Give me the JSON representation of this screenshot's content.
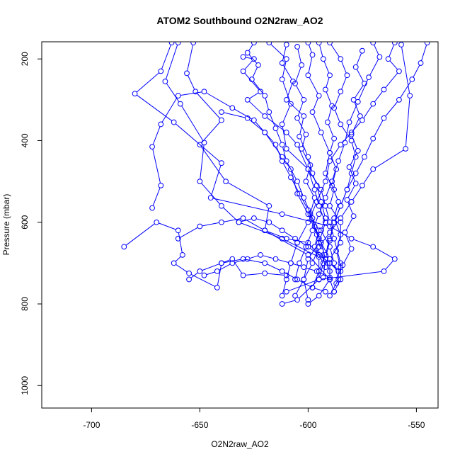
{
  "chart_data": {
    "type": "line",
    "title": "ATOM2 Southbound O2N2raw_AO2",
    "xlabel": "O2N2raw_AO2",
    "ylabel": "Pressure (mbar)",
    "xlim": [
      -723,
      -540
    ],
    "ylim": [
      1055,
      158
    ],
    "y_reversed": true,
    "x_ticks": [
      -700,
      -650,
      -600,
      -550
    ],
    "y_ticks": [
      200,
      400,
      600,
      800,
      1000
    ],
    "grid": false,
    "marker": "open-circle",
    "series_color": "#0000ff",
    "series": [
      {
        "values": [
          [
            -663,
            160
          ],
          [
            -668,
            230
          ],
          [
            -680,
            285
          ],
          [
            -662,
            355
          ],
          [
            -640,
            455
          ],
          [
            -645,
            540
          ],
          [
            -612,
            580
          ],
          [
            -590,
            610
          ],
          [
            -580,
            640
          ],
          [
            -570,
            660
          ],
          [
            -560,
            690
          ],
          [
            -565,
            720
          ],
          [
            -595,
            740
          ],
          [
            -610,
            770
          ]
        ]
      },
      {
        "values": [
          [
            -660,
            160
          ],
          [
            -666,
            255
          ],
          [
            -659,
            310
          ],
          [
            -648,
            405
          ],
          [
            -650,
            500
          ],
          [
            -640,
            560
          ],
          [
            -632,
            600
          ],
          [
            -612,
            640
          ],
          [
            -595,
            685
          ],
          [
            -595,
            740
          ],
          [
            -605,
            790
          ],
          [
            -612,
            800
          ]
        ]
      },
      {
        "values": [
          [
            -653,
            160
          ],
          [
            -656,
            235
          ],
          [
            -652,
            280
          ],
          [
            -640,
            350
          ],
          [
            -650,
            410
          ],
          [
            -638,
            500
          ],
          [
            -618,
            560
          ],
          [
            -620,
            620
          ],
          [
            -600,
            680
          ],
          [
            -590,
            740
          ],
          [
            -595,
            780
          ],
          [
            -600,
            800
          ]
        ]
      },
      {
        "values": [
          [
            -685,
            660
          ],
          [
            -670,
            600
          ],
          [
            -660,
            620
          ],
          [
            -658,
            680
          ],
          [
            -662,
            700
          ],
          [
            -655,
            725
          ],
          [
            -642,
            760
          ],
          [
            -640,
            700
          ],
          [
            -635,
            690
          ],
          [
            -630,
            730
          ],
          [
            -620,
            725
          ],
          [
            -610,
            730
          ]
        ]
      },
      {
        "values": [
          [
            -672,
            565
          ],
          [
            -668,
            510
          ],
          [
            -672,
            415
          ],
          [
            -668,
            360
          ],
          [
            -660,
            290
          ],
          [
            -648,
            280
          ],
          [
            -635,
            320
          ],
          [
            -625,
            350
          ],
          [
            -620,
            380
          ],
          [
            -612,
            440
          ],
          [
            -608,
            470
          ],
          [
            -605,
            530
          ],
          [
            -600,
            580
          ],
          [
            -595,
            640
          ],
          [
            -590,
            690
          ],
          [
            -590,
            740
          ]
        ]
      },
      {
        "values": [
          [
            -630,
            195
          ],
          [
            -625,
            200
          ],
          [
            -630,
            230
          ],
          [
            -622,
            280
          ],
          [
            -628,
            300
          ],
          [
            -620,
            340
          ],
          [
            -610,
            380
          ],
          [
            -605,
            410
          ],
          [
            -600,
            470
          ],
          [
            -594,
            520
          ],
          [
            -592,
            560
          ],
          [
            -590,
            600
          ],
          [
            -588,
            640
          ],
          [
            -585,
            700
          ],
          [
            -585,
            740
          ],
          [
            -588,
            770
          ]
        ]
      },
      {
        "values": [
          [
            -618,
            160
          ],
          [
            -610,
            200
          ],
          [
            -612,
            250
          ],
          [
            -608,
            310
          ],
          [
            -612,
            360
          ],
          [
            -610,
            420
          ],
          [
            -600,
            470
          ],
          [
            -597,
            520
          ],
          [
            -595,
            560
          ],
          [
            -592,
            600
          ],
          [
            -595,
            650
          ],
          [
            -600,
            690
          ],
          [
            -602,
            740
          ],
          [
            -600,
            790
          ]
        ]
      },
      {
        "values": [
          [
            -600,
            160
          ],
          [
            -598,
            190
          ],
          [
            -600,
            240
          ],
          [
            -595,
            290
          ],
          [
            -598,
            330
          ],
          [
            -594,
            380
          ],
          [
            -590,
            430
          ],
          [
            -592,
            480
          ],
          [
            -588,
            520
          ],
          [
            -590,
            560
          ],
          [
            -585,
            600
          ],
          [
            -585,
            650
          ],
          [
            -590,
            690
          ],
          [
            -590,
            740
          ],
          [
            -588,
            770
          ]
        ]
      },
      {
        "values": [
          [
            -590,
            160
          ],
          [
            -585,
            200
          ],
          [
            -582,
            240
          ],
          [
            -585,
            280
          ],
          [
            -588,
            320
          ],
          [
            -585,
            360
          ],
          [
            -580,
            400
          ],
          [
            -578,
            440
          ],
          [
            -580,
            480
          ],
          [
            -582,
            520
          ],
          [
            -585,
            560
          ],
          [
            -588,
            600
          ],
          [
            -590,
            640
          ],
          [
            -592,
            680
          ],
          [
            -595,
            720
          ],
          [
            -598,
            760
          ]
        ]
      },
      {
        "values": [
          [
            -560,
            160
          ],
          [
            -563,
            200
          ],
          [
            -558,
            230
          ],
          [
            -565,
            275
          ],
          [
            -570,
            310
          ],
          [
            -575,
            350
          ],
          [
            -580,
            380
          ],
          [
            -585,
            410
          ],
          [
            -590,
            450
          ],
          [
            -592,
            500
          ],
          [
            -596,
            550
          ],
          [
            -600,
            600
          ],
          [
            -605,
            650
          ],
          [
            -608,
            700
          ],
          [
            -610,
            740
          ],
          [
            -612,
            780
          ]
        ]
      },
      {
        "values": [
          [
            -557,
            165
          ],
          [
            -553,
            290
          ],
          [
            -555,
            420
          ],
          [
            -570,
            470
          ],
          [
            -575,
            510
          ],
          [
            -580,
            550
          ],
          [
            -585,
            590
          ],
          [
            -590,
            625
          ],
          [
            -595,
            660
          ],
          [
            -598,
            700
          ],
          [
            -602,
            740
          ],
          [
            -606,
            780
          ]
        ]
      },
      {
        "values": [
          [
            -570,
            160
          ],
          [
            -567,
            195
          ],
          [
            -572,
            245
          ],
          [
            -577,
            305
          ],
          [
            -581,
            355
          ],
          [
            -583,
            405
          ],
          [
            -586,
            450
          ],
          [
            -589,
            500
          ],
          [
            -592,
            540
          ],
          [
            -595,
            580
          ],
          [
            -598,
            620
          ],
          [
            -601,
            660
          ],
          [
            -604,
            700
          ],
          [
            -606,
            740
          ]
        ]
      },
      {
        "values": [
          [
            -610,
            165
          ],
          [
            -612,
            210
          ],
          [
            -607,
            255
          ],
          [
            -610,
            300
          ],
          [
            -602,
            340
          ],
          [
            -604,
            390
          ],
          [
            -600,
            440
          ],
          [
            -598,
            480
          ],
          [
            -596,
            510
          ],
          [
            -594,
            550
          ],
          [
            -592,
            590
          ],
          [
            -594,
            620
          ],
          [
            -590,
            660
          ],
          [
            -588,
            700
          ],
          [
            -586,
            740
          ],
          [
            -590,
            780
          ]
        ]
      },
      {
        "values": [
          [
            -660,
            640
          ],
          [
            -650,
            610
          ],
          [
            -640,
            600
          ],
          [
            -630,
            590
          ],
          [
            -620,
            620
          ],
          [
            -610,
            640
          ],
          [
            -600,
            650
          ],
          [
            -595,
            680
          ],
          [
            -590,
            700
          ],
          [
            -585,
            720
          ]
        ]
      },
      {
        "values": [
          [
            -655,
            740
          ],
          [
            -650,
            720
          ],
          [
            -640,
            700
          ],
          [
            -630,
            690
          ],
          [
            -620,
            700
          ],
          [
            -612,
            720
          ],
          [
            -605,
            740
          ],
          [
            -598,
            760
          ],
          [
            -592,
            770
          ]
        ]
      },
      {
        "values": [
          [
            -640,
            330
          ],
          [
            -628,
            345
          ],
          [
            -620,
            380
          ],
          [
            -615,
            410
          ],
          [
            -612,
            450
          ],
          [
            -608,
            490
          ],
          [
            -604,
            530
          ],
          [
            -600,
            570
          ],
          [
            -597,
            610
          ],
          [
            -594,
            650
          ],
          [
            -592,
            690
          ],
          [
            -590,
            720
          ]
        ]
      },
      {
        "values": [
          [
            -625,
            160
          ],
          [
            -628,
            185
          ],
          [
            -623,
            215
          ],
          [
            -626,
            250
          ],
          [
            -620,
            290
          ],
          [
            -618,
            330
          ],
          [
            -615,
            370
          ],
          [
            -612,
            410
          ],
          [
            -610,
            450
          ],
          [
            -605,
            500
          ],
          [
            -602,
            540
          ],
          [
            -598,
            590
          ],
          [
            -596,
            630
          ],
          [
            -594,
            670
          ],
          [
            -592,
            710
          ]
        ]
      },
      {
        "values": [
          [
            -545,
            160
          ],
          [
            -548,
            210
          ],
          [
            -552,
            250
          ],
          [
            -558,
            300
          ],
          [
            -565,
            345
          ],
          [
            -570,
            395
          ],
          [
            -574,
            440
          ],
          [
            -578,
            480
          ],
          [
            -582,
            520
          ],
          [
            -585,
            560
          ],
          [
            -588,
            600
          ],
          [
            -590,
            645
          ],
          [
            -592,
            690
          ],
          [
            -593,
            735
          ]
        ]
      },
      {
        "values": [
          [
            -595,
            160
          ],
          [
            -593,
            200
          ],
          [
            -590,
            240
          ],
          [
            -592,
            275
          ],
          [
            -589,
            315
          ],
          [
            -591,
            355
          ],
          [
            -588,
            395
          ],
          [
            -590,
            430
          ],
          [
            -587,
            470
          ],
          [
            -589,
            510
          ],
          [
            -586,
            550
          ],
          [
            -588,
            590
          ],
          [
            -585,
            630
          ],
          [
            -587,
            670
          ],
          [
            -585,
            710
          ],
          [
            -587,
            750
          ]
        ]
      },
      {
        "values": [
          [
            -605,
            170
          ],
          [
            -603,
            215
          ],
          [
            -606,
            260
          ],
          [
            -602,
            300
          ],
          [
            -605,
            345
          ],
          [
            -601,
            385
          ],
          [
            -603,
            420
          ],
          [
            -599,
            460
          ],
          [
            -601,
            500
          ],
          [
            -597,
            540
          ],
          [
            -599,
            580
          ],
          [
            -595,
            620
          ],
          [
            -597,
            660
          ],
          [
            -593,
            700
          ],
          [
            -595,
            740
          ]
        ]
      },
      {
        "values": [
          [
            -575,
            180
          ],
          [
            -578,
            220
          ],
          [
            -574,
            260
          ],
          [
            -579,
            300
          ],
          [
            -576,
            340
          ],
          [
            -580,
            385
          ],
          [
            -577,
            425
          ],
          [
            -581,
            465
          ],
          [
            -578,
            505
          ],
          [
            -582,
            545
          ],
          [
            -579,
            585
          ],
          [
            -583,
            625
          ],
          [
            -580,
            665
          ],
          [
            -584,
            705
          ]
        ]
      },
      {
        "values": [
          [
            -648,
            730
          ],
          [
            -642,
            720
          ],
          [
            -635,
            700
          ],
          [
            -628,
            690
          ],
          [
            -622,
            680
          ],
          [
            -615,
            690
          ],
          [
            -608,
            700
          ],
          [
            -602,
            710
          ],
          [
            -596,
            720
          ],
          [
            -590,
            735
          ]
        ]
      },
      {
        "values": [
          [
            -632,
            600
          ],
          [
            -625,
            590
          ],
          [
            -618,
            600
          ],
          [
            -612,
            620
          ],
          [
            -606,
            640
          ],
          [
            -600,
            660
          ],
          [
            -595,
            680
          ],
          [
            -590,
            700
          ],
          [
            -586,
            720
          ]
        ]
      }
    ]
  }
}
